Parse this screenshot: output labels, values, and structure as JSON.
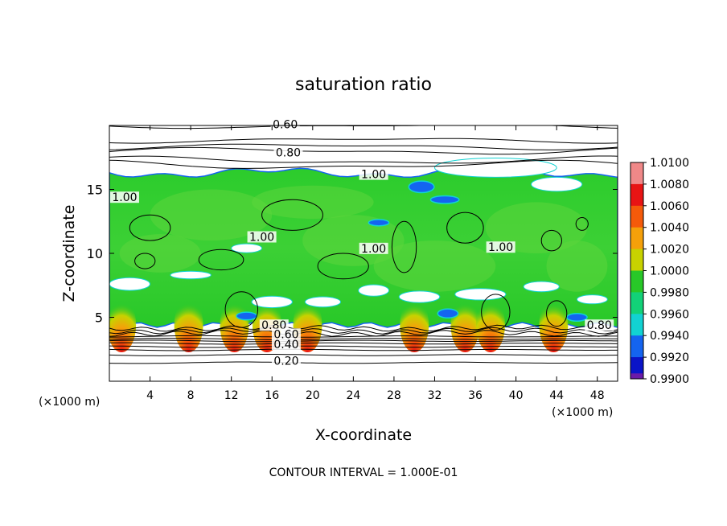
{
  "chart_data": {
    "type": "heatmap",
    "title": "saturation ratio",
    "xlabel": "X-coordinate",
    "ylabel": "Z-coordinate",
    "x_unit_label": "(×1000 m)",
    "z_unit_label": "(×1000 m)",
    "footer": "CONTOUR INTERVAL = 1.000E-01",
    "xlim": [
      0,
      50
    ],
    "ylim": [
      0,
      20
    ],
    "x_ticks": [
      4,
      8,
      12,
      16,
      20,
      24,
      28,
      32,
      36,
      40,
      44,
      48
    ],
    "y_ticks": [
      5,
      10,
      15
    ],
    "colorbar": {
      "levels": [
        "1.0100",
        "1.0080",
        "1.0060",
        "1.0040",
        "1.0020",
        "1.0000",
        "0.9980",
        "0.9960",
        "0.9940",
        "0.9920",
        "0.9900"
      ],
      "colors": [
        "#f08888",
        "#e81414",
        "#f55a0a",
        "#f5a00a",
        "#c8d200",
        "#28c828",
        "#12d278",
        "#12d2d2",
        "#1464f0",
        "#0a14c8",
        "#6a1aa8"
      ]
    },
    "contour_labels": [
      {
        "text": "0.60",
        "x": 17.3,
        "z": 19.9
      },
      {
        "text": "0.80",
        "x": 17.6,
        "z": 17.7
      },
      {
        "text": "1.00",
        "x": 26.0,
        "z": 16.0
      },
      {
        "text": "1.00",
        "x": 1.5,
        "z": 14.2
      },
      {
        "text": "1.00",
        "x": 15.0,
        "z": 11.1
      },
      {
        "text": "1.00",
        "x": 26.0,
        "z": 10.2
      },
      {
        "text": "1.00",
        "x": 38.5,
        "z": 10.3
      },
      {
        "text": "0.80",
        "x": 16.2,
        "z": 4.2
      },
      {
        "text": "0.60",
        "x": 17.4,
        "z": 3.5
      },
      {
        "text": "0.40",
        "x": 17.4,
        "z": 2.7
      },
      {
        "text": "0.20",
        "x": 17.4,
        "z": 1.4
      },
      {
        "text": "0.80",
        "x": 48.2,
        "z": 4.2
      }
    ],
    "upper_contour_z": [
      19.95,
      18.85,
      18.35,
      18.0,
      17.25,
      16.9
    ],
    "lower_contour_z": [
      4.15,
      3.95,
      3.75,
      3.5,
      3.3,
      3.15,
      2.95,
      2.7,
      2.45,
      2.05,
      1.45
    ],
    "cloud_top_z": 16.3,
    "cloud_base_z": 4.4,
    "surface_hotspots_x": [
      1.2,
      7.8,
      12.3,
      15.5,
      19.5,
      30.0,
      35.0,
      37.5,
      43.7
    ],
    "clear_patches": [
      {
        "x": 38,
        "z": 16.7,
        "w": 12,
        "h": 1.5
      },
      {
        "x": 44,
        "z": 15.4,
        "w": 5,
        "h": 1.1
      },
      {
        "x": 2,
        "z": 7.6,
        "w": 4,
        "h": 1.0
      },
      {
        "x": 8,
        "z": 8.3,
        "w": 4,
        "h": 0.6
      },
      {
        "x": 13.5,
        "z": 10.4,
        "w": 3,
        "h": 0.7
      },
      {
        "x": 16,
        "z": 6.2,
        "w": 4,
        "h": 0.9
      },
      {
        "x": 21,
        "z": 6.2,
        "w": 3.5,
        "h": 0.8
      },
      {
        "x": 26,
        "z": 7.1,
        "w": 3,
        "h": 0.9
      },
      {
        "x": 30.5,
        "z": 6.6,
        "w": 4,
        "h": 0.9
      },
      {
        "x": 36.5,
        "z": 6.8,
        "w": 5,
        "h": 0.9
      },
      {
        "x": 42.5,
        "z": 7.4,
        "w": 3.5,
        "h": 0.8
      },
      {
        "x": 47.5,
        "z": 6.4,
        "w": 3,
        "h": 0.7
      }
    ],
    "blue_patches": [
      {
        "x": 30.7,
        "z": 15.2,
        "w": 2.5,
        "h": 0.9
      },
      {
        "x": 33,
        "z": 14.2,
        "w": 2.8,
        "h": 0.6
      },
      {
        "x": 26.5,
        "z": 12.4,
        "w": 2.0,
        "h": 0.5
      },
      {
        "x": 13.5,
        "z": 5.1,
        "w": 2.0,
        "h": 0.6
      },
      {
        "x": 33.3,
        "z": 5.3,
        "w": 2.0,
        "h": 0.7
      },
      {
        "x": 46,
        "z": 5.0,
        "w": 2.0,
        "h": 0.6
      }
    ]
  }
}
